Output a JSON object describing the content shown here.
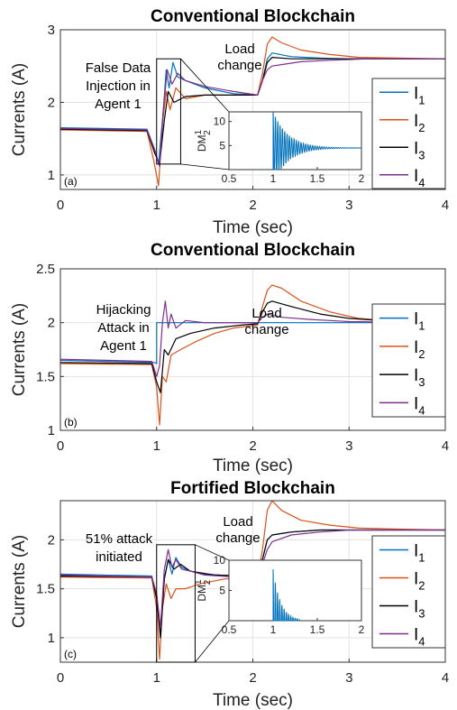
{
  "colors": {
    "I1": "#0072BD",
    "I2": "#D95319",
    "I3": "#000000",
    "I4": "#7E2F8E"
  },
  "chart_data": [
    {
      "type": "line",
      "panel_label": "(a)",
      "title": "Conventional Blockchain",
      "xlabel": "Time (sec)",
      "ylabel": "Currents (A)",
      "xlim": [
        0,
        4
      ],
      "ylim": [
        0.8,
        3
      ],
      "xticks": [
        "0",
        "1",
        "2",
        "3",
        "4"
      ],
      "yticks": [
        "1",
        "2",
        "3"
      ],
      "grid": true,
      "legend_position": "right",
      "annotations": [
        {
          "lines": [
            "False Data",
            "Injection in",
            "Agent 1"
          ]
        },
        {
          "lines": [
            "Load",
            "change"
          ]
        }
      ],
      "legend": [
        {
          "key": "I1",
          "label": "I",
          "sub": "1"
        },
        {
          "key": "I2",
          "label": "I",
          "sub": "2"
        },
        {
          "key": "I3",
          "label": "I",
          "sub": "3"
        },
        {
          "key": "I4",
          "label": "I",
          "sub": "4"
        }
      ],
      "series": [
        {
          "key": "I1",
          "x": [
            0,
            0.9,
            0.98,
            1.02,
            1.07,
            1.1,
            1.13,
            1.17,
            1.22,
            1.3,
            1.5,
            1.8,
            2.05,
            2.1,
            2.15,
            2.2,
            2.4,
            2.7,
            3,
            3.5,
            4
          ],
          "y": [
            1.65,
            1.63,
            1.35,
            1.15,
            1.9,
            2.45,
            2.2,
            2.55,
            2.35,
            2.3,
            2.2,
            2.12,
            2.1,
            2.3,
            2.6,
            2.68,
            2.63,
            2.61,
            2.6,
            2.6,
            2.6
          ]
        },
        {
          "key": "I2",
          "x": [
            0,
            0.9,
            0.97,
            1.02,
            1.06,
            1.1,
            1.14,
            1.2,
            1.3,
            1.5,
            1.8,
            2.05,
            2.1,
            2.15,
            2.2,
            2.3,
            2.5,
            2.8,
            3.1,
            3.5,
            4
          ],
          "y": [
            1.62,
            1.6,
            1.2,
            0.85,
            1.7,
            2.15,
            1.9,
            2.2,
            2.05,
            2.1,
            2.1,
            2.1,
            2.4,
            2.8,
            2.9,
            2.82,
            2.72,
            2.66,
            2.62,
            2.61,
            2.6
          ]
        },
        {
          "key": "I3",
          "x": [
            0,
            0.9,
            0.98,
            1.03,
            1.08,
            1.12,
            1.18,
            1.3,
            1.5,
            1.8,
            2.05,
            2.1,
            2.15,
            2.2,
            2.4,
            2.7,
            3,
            4
          ],
          "y": [
            1.63,
            1.61,
            1.3,
            1.15,
            1.75,
            2.15,
            2.0,
            2.08,
            2.1,
            2.1,
            2.1,
            2.3,
            2.55,
            2.62,
            2.6,
            2.6,
            2.6,
            2.6
          ]
        },
        {
          "key": "I4",
          "x": [
            0,
            0.9,
            0.98,
            1.03,
            1.07,
            1.11,
            1.16,
            1.22,
            1.3,
            1.5,
            1.8,
            2.05,
            2.1,
            2.15,
            2.2,
            2.3,
            2.5,
            2.8,
            3.2,
            4
          ],
          "y": [
            1.64,
            1.62,
            1.35,
            1.12,
            1.9,
            2.45,
            2.25,
            2.4,
            2.3,
            2.22,
            2.15,
            2.1,
            2.3,
            2.45,
            2.5,
            2.52,
            2.56,
            2.58,
            2.6,
            2.6
          ]
        }
      ],
      "zoom_box": {
        "x": [
          1.0,
          1.25
        ],
        "y": [
          1.15,
          2.6
        ]
      },
      "inset": {
        "type": "line",
        "ylabel": "DM",
        "ylabel_sup": "1",
        "ylabel_sub": "2",
        "xlim": [
          0.5,
          2
        ],
        "ylim": [
          0,
          12
        ],
        "xticks": [
          "0.5",
          "1",
          "1.5",
          "2"
        ],
        "yticks": [
          "5",
          "10"
        ],
        "signal": {
          "key": "I1",
          "start": 1.0,
          "end": 2.0,
          "base": 4.5,
          "amp": 7.6,
          "decay": 6.0,
          "freq": 38
        }
      }
    },
    {
      "type": "line",
      "panel_label": "(b)",
      "title": "Conventional Blockchain",
      "xlabel": "Time (sec)",
      "ylabel": "Currents (A)",
      "xlim": [
        0,
        4
      ],
      "ylim": [
        1,
        2.5
      ],
      "xticks": [
        "0",
        "1",
        "2",
        "3",
        "4"
      ],
      "yticks": [
        "1",
        "1.5",
        "2",
        "2.5"
      ],
      "grid": true,
      "legend_position": "right",
      "annotations": [
        {
          "lines": [
            "Hijacking",
            "Attack in",
            "Agent 1"
          ]
        },
        {
          "lines": [
            "Load",
            "change"
          ]
        }
      ],
      "legend": [
        {
          "key": "I1",
          "label": "I",
          "sub": "1"
        },
        {
          "key": "I2",
          "label": "I",
          "sub": "2"
        },
        {
          "key": "I3",
          "label": "I",
          "sub": "3"
        },
        {
          "key": "I4",
          "label": "I",
          "sub": "4"
        }
      ],
      "series": [
        {
          "key": "I1",
          "x": [
            0,
            0.98,
            1.0,
            1.0,
            4
          ],
          "y": [
            1.65,
            1.63,
            1.62,
            2.0,
            2.0
          ]
        },
        {
          "key": "I2",
          "x": [
            0,
            0.95,
            1.0,
            1.03,
            1.06,
            1.1,
            1.15,
            1.25,
            1.4,
            1.6,
            1.8,
            2.05,
            2.1,
            2.15,
            2.2,
            2.3,
            2.5,
            2.8,
            3.1,
            3.5,
            4
          ],
          "y": [
            1.62,
            1.61,
            1.4,
            1.05,
            1.5,
            1.45,
            1.7,
            1.75,
            1.82,
            1.9,
            1.95,
            1.98,
            2.15,
            2.3,
            2.35,
            2.32,
            2.2,
            2.1,
            2.04,
            2.01,
            2.0
          ]
        },
        {
          "key": "I3",
          "x": [
            0,
            0.95,
            1.0,
            1.04,
            1.08,
            1.12,
            1.2,
            1.35,
            1.6,
            1.9,
            2.05,
            2.1,
            2.15,
            2.2,
            2.4,
            2.7,
            3,
            3.5,
            4
          ],
          "y": [
            1.63,
            1.62,
            1.45,
            1.35,
            1.75,
            1.7,
            1.85,
            1.9,
            1.95,
            1.98,
            1.99,
            2.1,
            2.18,
            2.2,
            2.15,
            2.08,
            2.04,
            2.01,
            2.0
          ]
        },
        {
          "key": "I4",
          "x": [
            0,
            0.95,
            1.0,
            1.03,
            1.06,
            1.09,
            1.12,
            1.15,
            1.2,
            1.3,
            1.5,
            1.8,
            2.05,
            2.1,
            2.15,
            2.3,
            2.6,
            3,
            4
          ],
          "y": [
            1.66,
            1.64,
            1.5,
            1.6,
            2.0,
            2.2,
            1.95,
            2.08,
            1.95,
            2.02,
            2.0,
            2.0,
            2.0,
            2.05,
            2.08,
            2.05,
            2.03,
            2.01,
            2.0
          ]
        }
      ]
    },
    {
      "type": "line",
      "panel_label": "(c)",
      "title": "Fortified Blockchain",
      "xlabel": "Time (sec)",
      "ylabel": "Currents (A)",
      "xlim": [
        0,
        4
      ],
      "ylim": [
        0.75,
        2.4
      ],
      "xticks": [
        "0",
        "1",
        "2",
        "3",
        "4"
      ],
      "yticks": [
        "1",
        "1.5",
        "2"
      ],
      "grid": true,
      "legend_position": "right",
      "annotations": [
        {
          "lines": [
            "51% attack",
            "initiated"
          ]
        },
        {
          "lines": [
            "Load",
            "change"
          ]
        }
      ],
      "legend": [
        {
          "key": "I1",
          "label": "I",
          "sub": "1"
        },
        {
          "key": "I2",
          "label": "I",
          "sub": "2"
        },
        {
          "key": "I3",
          "label": "I",
          "sub": "3"
        },
        {
          "key": "I4",
          "label": "I",
          "sub": "4"
        }
      ],
      "series": [
        {
          "key": "I1",
          "x": [
            0,
            0.95,
            1.0,
            1.04,
            1.08,
            1.12,
            1.16,
            1.2,
            1.26,
            1.35,
            1.5,
            1.8,
            2.05,
            2.1,
            2.15,
            2.2,
            2.4,
            2.7,
            3,
            4
          ],
          "y": [
            1.65,
            1.63,
            1.4,
            1.05,
            1.6,
            1.8,
            1.65,
            1.82,
            1.72,
            1.68,
            1.65,
            1.63,
            1.63,
            1.8,
            2.0,
            2.05,
            2.08,
            2.1,
            2.1,
            2.1
          ]
        },
        {
          "key": "I2",
          "x": [
            0,
            0.95,
            1.0,
            1.03,
            1.06,
            1.1,
            1.15,
            1.2,
            1.3,
            1.45,
            1.7,
            2.05,
            2.1,
            2.15,
            2.2,
            2.3,
            2.5,
            2.8,
            3.1,
            3.5,
            4
          ],
          "y": [
            1.62,
            1.61,
            1.3,
            0.78,
            1.3,
            1.55,
            1.4,
            1.5,
            1.5,
            1.55,
            1.6,
            1.62,
            1.9,
            2.3,
            2.4,
            2.3,
            2.2,
            2.15,
            2.12,
            2.11,
            2.1
          ]
        },
        {
          "key": "I3",
          "x": [
            0,
            0.95,
            1.0,
            1.04,
            1.08,
            1.12,
            1.18,
            1.25,
            1.35,
            1.6,
            2.05,
            2.1,
            2.15,
            2.2,
            2.4,
            2.7,
            3,
            4
          ],
          "y": [
            1.63,
            1.62,
            1.4,
            1.0,
            1.6,
            1.8,
            1.7,
            1.75,
            1.68,
            1.64,
            1.63,
            1.8,
            2.0,
            2.05,
            2.08,
            2.1,
            2.1,
            2.1
          ]
        },
        {
          "key": "I4",
          "x": [
            0,
            0.95,
            1.0,
            1.04,
            1.08,
            1.12,
            1.16,
            1.2,
            1.26,
            1.35,
            1.5,
            1.8,
            2.05,
            2.1,
            2.15,
            2.2,
            2.4,
            2.7,
            3,
            4
          ],
          "y": [
            1.64,
            1.62,
            1.45,
            1.1,
            1.7,
            1.9,
            1.72,
            1.8,
            1.7,
            1.68,
            1.64,
            1.62,
            1.62,
            1.75,
            1.9,
            1.98,
            2.05,
            2.08,
            2.1,
            2.1
          ]
        }
      ],
      "zoom_box": {
        "x": [
          1.0,
          1.4
        ],
        "y": [
          0.75,
          1.95
        ]
      },
      "inset": {
        "type": "line",
        "ylabel": "DM",
        "ylabel_sup": "1",
        "ylabel_sub": "2",
        "xlim": [
          0.5,
          2
        ],
        "ylim": [
          0,
          10
        ],
        "xticks": [
          "0.5",
          "1",
          "1.5",
          "2"
        ],
        "yticks": [
          "5",
          "10"
        ],
        "signal": {
          "key": "I1",
          "start": 1.0,
          "end": 1.3,
          "base": 0,
          "amp": 8.5,
          "decay": 12.0,
          "freq": 40
        }
      }
    }
  ]
}
